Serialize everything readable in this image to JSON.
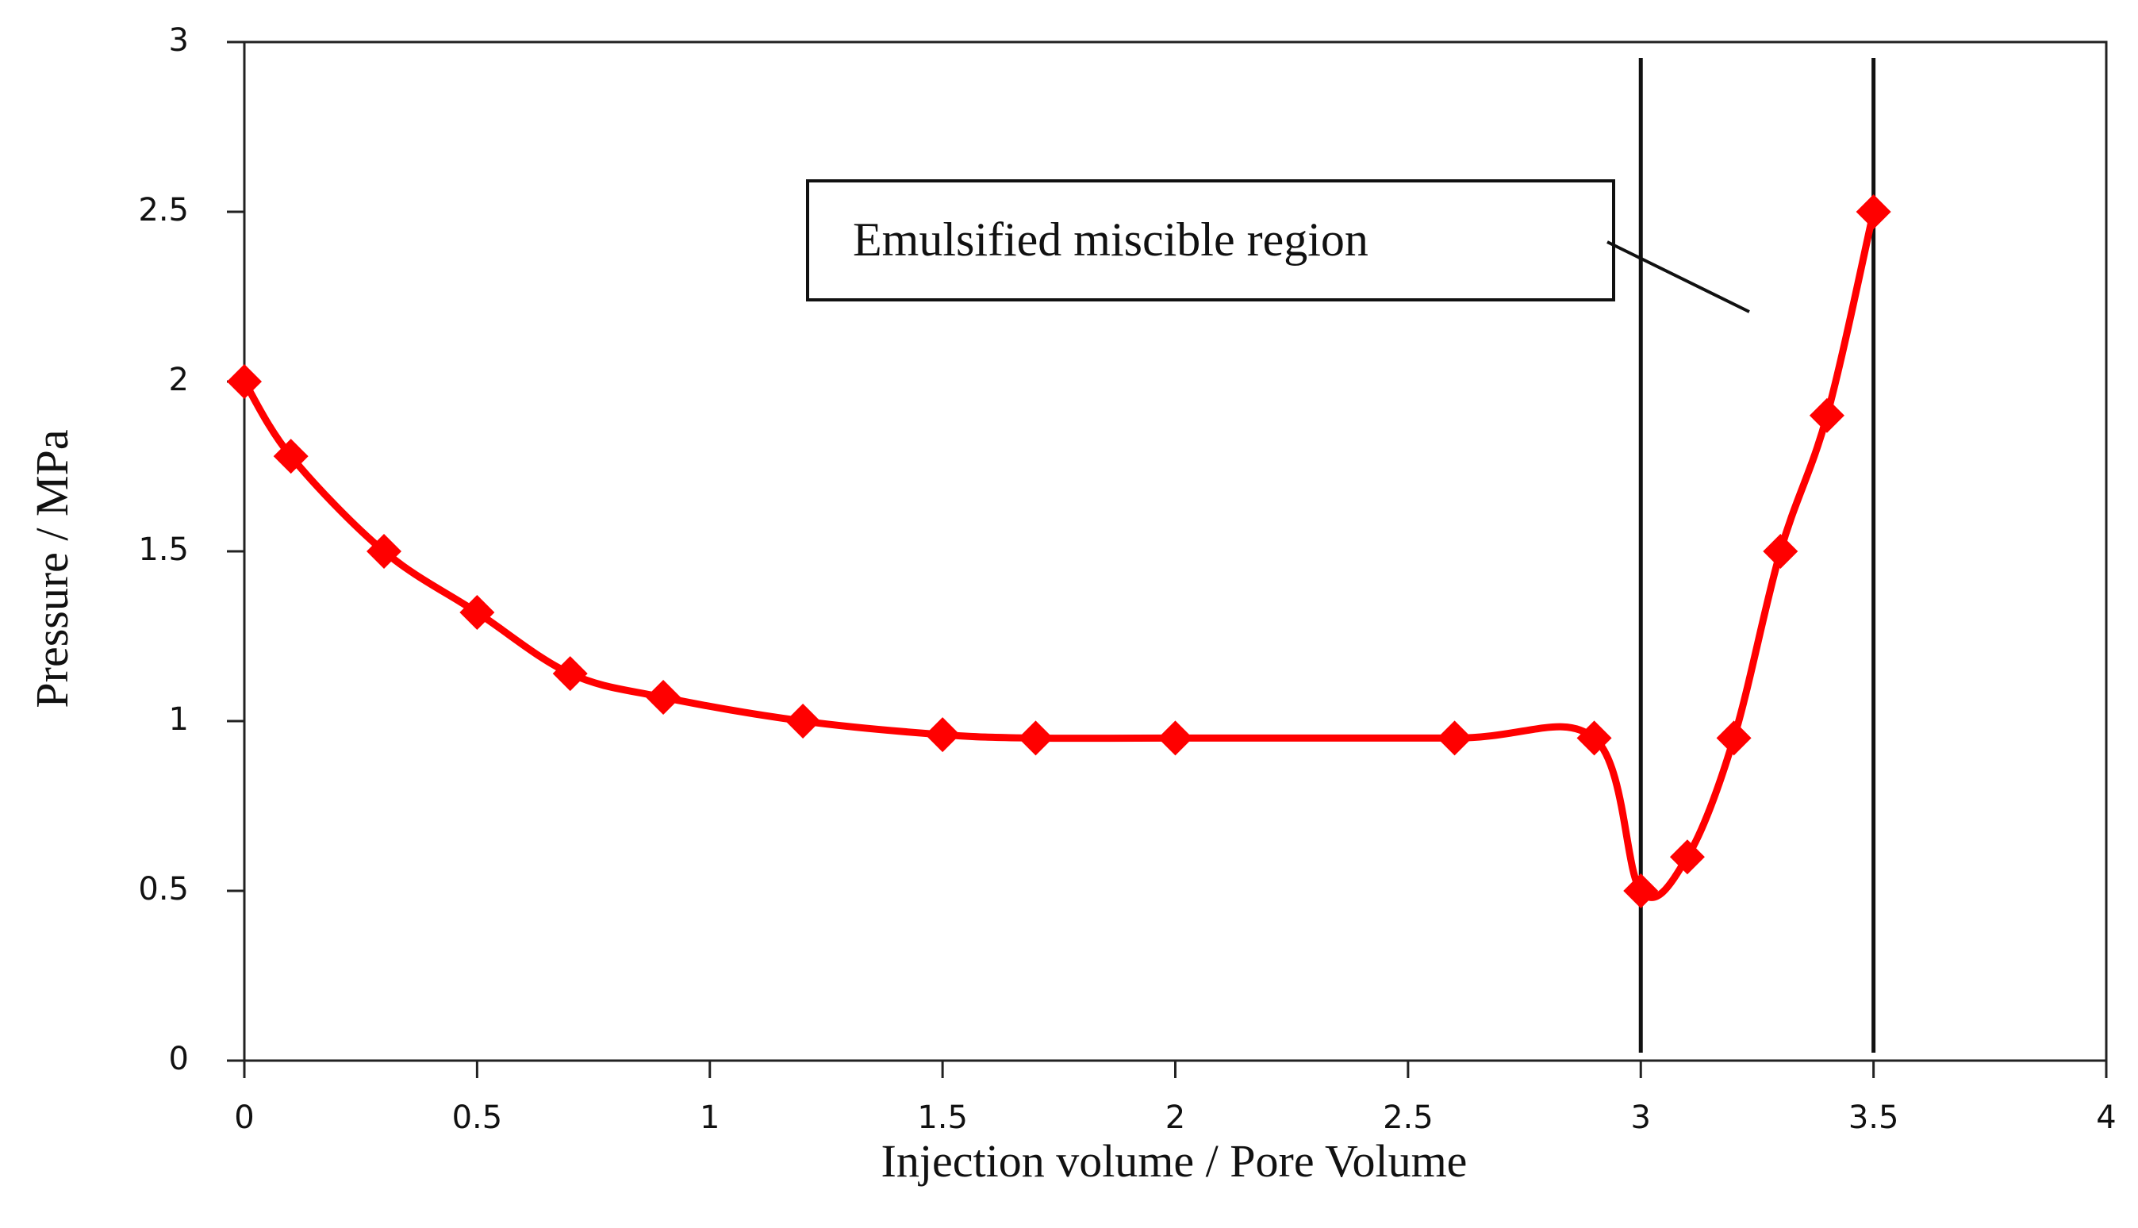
{
  "chart_data": {
    "type": "line",
    "title": "",
    "xlabel": "Injection volume / Pore Volume",
    "ylabel": "Pressure / MPa",
    "xlim": [
      0,
      4
    ],
    "ylim": [
      0,
      3
    ],
    "x_ticks": [
      0,
      0.5,
      1,
      1.5,
      2,
      2.5,
      3,
      3.5,
      4
    ],
    "y_ticks": [
      0,
      0.5,
      1,
      1.5,
      2,
      2.5,
      3
    ],
    "x_tick_labels": [
      "0",
      "0.5",
      "1",
      "1.5",
      "2",
      "2.5",
      "3",
      "3.5",
      "4"
    ],
    "y_tick_labels": [
      "0",
      "0.5",
      "1",
      "1.5",
      "2",
      "2.5",
      "3"
    ],
    "grid": false,
    "series": [
      {
        "name": "Pressure",
        "color": "#ff0000",
        "marker": "diamond",
        "x": [
          0,
          0.1,
          0.3,
          0.5,
          0.7,
          0.9,
          1.2,
          1.5,
          1.7,
          2.0,
          2.6,
          2.9,
          3.0,
          3.1,
          3.2,
          3.3,
          3.4,
          3.5
        ],
        "y": [
          2.0,
          1.78,
          1.5,
          1.32,
          1.14,
          1.07,
          1.0,
          0.96,
          0.95,
          0.95,
          0.95,
          0.95,
          0.5,
          0.6,
          0.95,
          1.5,
          1.9,
          2.5
        ]
      }
    ],
    "vertical_lines": [
      3.0,
      3.5
    ],
    "annotation": {
      "text": "Emulsified miscible region"
    }
  }
}
